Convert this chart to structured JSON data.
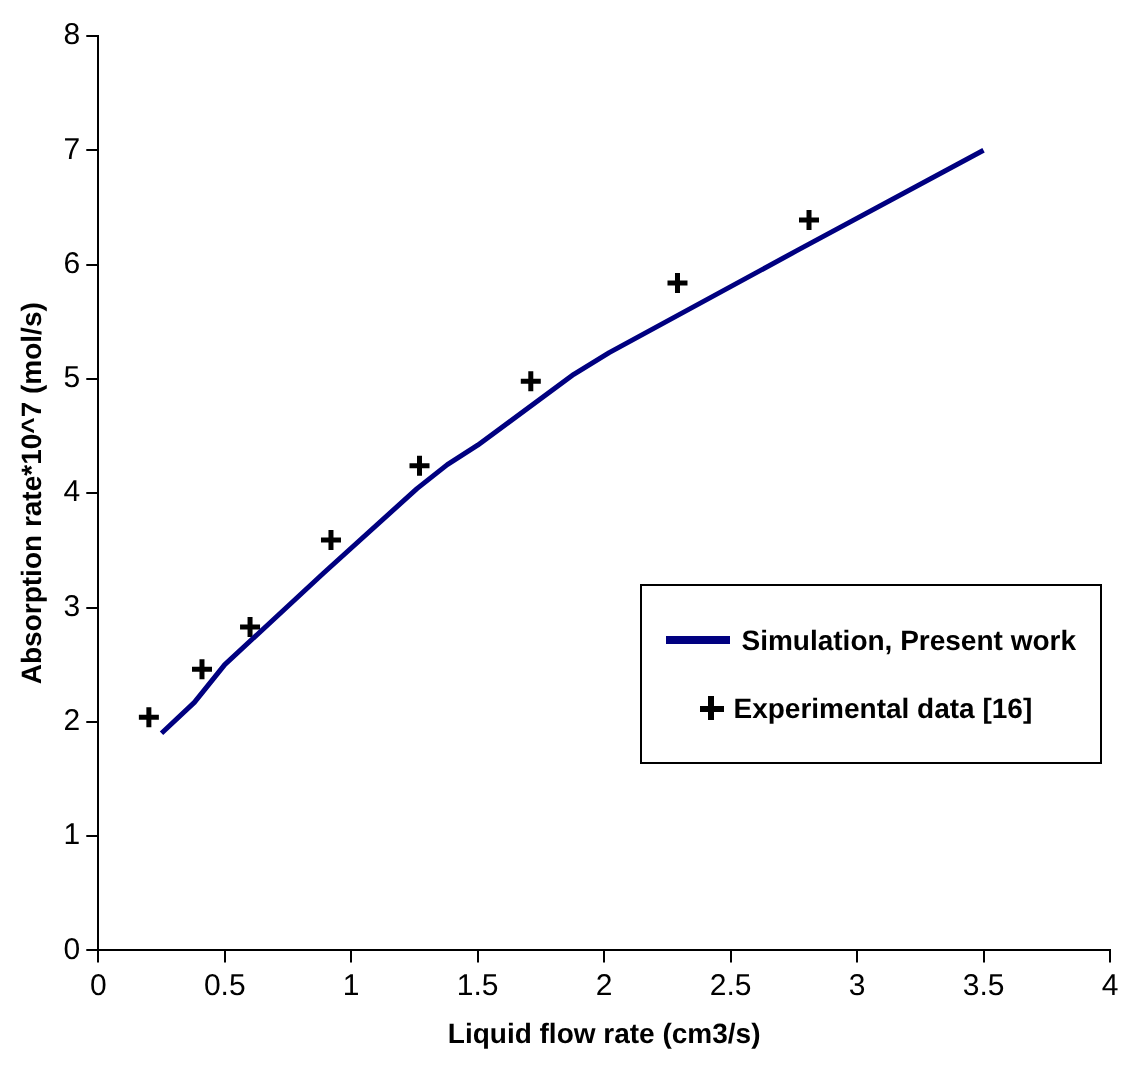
{
  "chart_data": {
    "type": "line",
    "xlabel": "Liquid flow rate (cm3/s)",
    "ylabel": "Absorption rate*10^7 (mol/s)",
    "xlim": [
      0,
      4
    ],
    "xticks": [
      0,
      0.5,
      1,
      1.5,
      2,
      2.5,
      3,
      3.5,
      4
    ],
    "ylim": [
      0,
      8
    ],
    "yticks": [
      0,
      1,
      2,
      3,
      4,
      5,
      6,
      7,
      8
    ],
    "grid": false,
    "legend": "right",
    "series": [
      {
        "name": "Simulation, Present work",
        "color": "#000080",
        "marker": "none",
        "line_style": "solid",
        "x": [
          0.25,
          0.38,
          0.5,
          0.89,
          1.26,
          1.38,
          1.5,
          1.88,
          2.02,
          2.76,
          3.5
        ],
        "values": [
          1.9,
          2.17,
          2.5,
          3.3,
          4.04,
          4.25,
          4.42,
          5.04,
          5.23,
          6.12,
          7.0
        ]
      },
      {
        "name": "Experimental data [16]",
        "type": "scatter",
        "color": "#000000",
        "marker": "cross",
        "x": [
          0.2,
          0.41,
          0.6,
          0.92,
          1.27,
          1.71,
          2.29,
          2.81
        ],
        "values": [
          2.04,
          2.46,
          2.83,
          3.59,
          4.24,
          4.98,
          5.84,
          6.39
        ]
      }
    ]
  }
}
